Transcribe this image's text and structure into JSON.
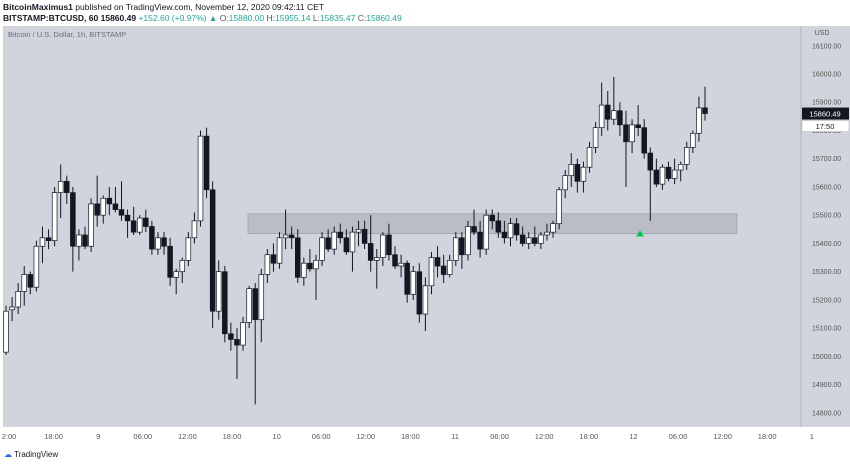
{
  "header": {
    "author": "BitcoinMaximus1",
    "published_text": "published on TradingView.com, November 12, 2020 09:42:11 CET",
    "symbol": "BITSTAMP:BTCUSD, 60",
    "last_price": "15860.49",
    "change_text": "+152.60 (+0.97%)",
    "o_label": "O:",
    "o_value": "15880.00",
    "h_label": "H:",
    "h_value": "15955.14",
    "l_label": "L:",
    "l_value": "15835.47",
    "c_label": "C:",
    "c_value": "15860.49"
  },
  "pane_title": "Bitcoin / U.S. Dollar, 1h, BITSTAMP",
  "price_label": "15860.49",
  "countdown_label": "17:50",
  "footer": {
    "logo_text": "TradingView"
  },
  "colors": {
    "up_body": "#ffffff",
    "down_body": "#131722",
    "wick": "#131722",
    "zone": "#b2b5be",
    "arrow": "#00c853",
    "background": "#d1d4dc"
  },
  "chart_data": {
    "type": "candlestick",
    "y_axis": {
      "currency": "USD",
      "ticks": [
        "16100.00",
        "16000.00",
        "15900.00",
        "15800.00",
        "15700.00",
        "15600.00",
        "15500.00",
        "15400.00",
        "15300.00",
        "15200.00",
        "15100.00",
        "15000.00",
        "14900.00",
        "14800.00"
      ],
      "ylim": [
        14750,
        16170
      ]
    },
    "x_axis": {
      "ticks": [
        "2:00",
        "18:00",
        "9",
        "06:00",
        "12:00",
        "18:00",
        "10",
        "06:00",
        "12:00",
        "18:00",
        "11",
        "06:00",
        "12:00",
        "18:00",
        "12",
        "06:00",
        "12:00",
        "18:00",
        "1"
      ]
    },
    "support_zone": {
      "low": 15435,
      "high": 15505
    },
    "bullish_marker": {
      "price": 15435
    },
    "candles": [
      {
        "o": 15015,
        "h": 15180,
        "l": 15005,
        "c": 15160
      },
      {
        "o": 15165,
        "h": 15210,
        "l": 15125,
        "c": 15175
      },
      {
        "o": 15175,
        "h": 15260,
        "l": 15150,
        "c": 15230
      },
      {
        "o": 15230,
        "h": 15320,
        "l": 15180,
        "c": 15290
      },
      {
        "o": 15290,
        "h": 15300,
        "l": 15220,
        "c": 15245
      },
      {
        "o": 15245,
        "h": 15410,
        "l": 15230,
        "c": 15390
      },
      {
        "o": 15390,
        "h": 15460,
        "l": 15330,
        "c": 15420
      },
      {
        "o": 15420,
        "h": 15450,
        "l": 15380,
        "c": 15410
      },
      {
        "o": 15410,
        "h": 15600,
        "l": 15390,
        "c": 15580
      },
      {
        "o": 15580,
        "h": 15680,
        "l": 15490,
        "c": 15620
      },
      {
        "o": 15620,
        "h": 15640,
        "l": 15540,
        "c": 15580
      },
      {
        "o": 15580,
        "h": 15600,
        "l": 15300,
        "c": 15390
      },
      {
        "o": 15390,
        "h": 15450,
        "l": 15340,
        "c": 15430
      },
      {
        "o": 15430,
        "h": 15460,
        "l": 15380,
        "c": 15390
      },
      {
        "o": 15390,
        "h": 15560,
        "l": 15370,
        "c": 15540
      },
      {
        "o": 15540,
        "h": 15640,
        "l": 15460,
        "c": 15500
      },
      {
        "o": 15500,
        "h": 15570,
        "l": 15470,
        "c": 15560
      },
      {
        "o": 15560,
        "h": 15600,
        "l": 15500,
        "c": 15540
      },
      {
        "o": 15540,
        "h": 15600,
        "l": 15510,
        "c": 15520
      },
      {
        "o": 15520,
        "h": 15620,
        "l": 15480,
        "c": 15500
      },
      {
        "o": 15500,
        "h": 15520,
        "l": 15420,
        "c": 15480
      },
      {
        "o": 15480,
        "h": 15530,
        "l": 15430,
        "c": 15440
      },
      {
        "o": 15440,
        "h": 15500,
        "l": 15430,
        "c": 15490
      },
      {
        "o": 15490,
        "h": 15520,
        "l": 15440,
        "c": 15460
      },
      {
        "o": 15460,
        "h": 15480,
        "l": 15360,
        "c": 15380
      },
      {
        "o": 15380,
        "h": 15440,
        "l": 15360,
        "c": 15420
      },
      {
        "o": 15420,
        "h": 15440,
        "l": 15360,
        "c": 15390
      },
      {
        "o": 15390,
        "h": 15420,
        "l": 15250,
        "c": 15280
      },
      {
        "o": 15280,
        "h": 15310,
        "l": 15220,
        "c": 15300
      },
      {
        "o": 15300,
        "h": 15350,
        "l": 15260,
        "c": 15340
      },
      {
        "o": 15340,
        "h": 15440,
        "l": 15320,
        "c": 15420
      },
      {
        "o": 15420,
        "h": 15510,
        "l": 15400,
        "c": 15480
      },
      {
        "o": 15480,
        "h": 15800,
        "l": 15460,
        "c": 15780
      },
      {
        "o": 15780,
        "h": 15810,
        "l": 15560,
        "c": 15590
      },
      {
        "o": 15590,
        "h": 15620,
        "l": 15100,
        "c": 15160
      },
      {
        "o": 15160,
        "h": 15340,
        "l": 15130,
        "c": 15300
      },
      {
        "o": 15300,
        "h": 15320,
        "l": 15050,
        "c": 15080
      },
      {
        "o": 15080,
        "h": 15120,
        "l": 15020,
        "c": 15060
      },
      {
        "o": 15060,
        "h": 15100,
        "l": 14920,
        "c": 15040
      },
      {
        "o": 15040,
        "h": 15140,
        "l": 15020,
        "c": 15120
      },
      {
        "o": 15120,
        "h": 15250,
        "l": 15100,
        "c": 15240
      },
      {
        "o": 15240,
        "h": 15260,
        "l": 14830,
        "c": 15130
      },
      {
        "o": 15130,
        "h": 15310,
        "l": 15050,
        "c": 15290
      },
      {
        "o": 15290,
        "h": 15380,
        "l": 15260,
        "c": 15360
      },
      {
        "o": 15360,
        "h": 15400,
        "l": 15300,
        "c": 15330
      },
      {
        "o": 15330,
        "h": 15440,
        "l": 15310,
        "c": 15420
      },
      {
        "o": 15420,
        "h": 15520,
        "l": 15380,
        "c": 15430
      },
      {
        "o": 15430,
        "h": 15460,
        "l": 15380,
        "c": 15420
      },
      {
        "o": 15420,
        "h": 15450,
        "l": 15260,
        "c": 15280
      },
      {
        "o": 15280,
        "h": 15350,
        "l": 15250,
        "c": 15330
      },
      {
        "o": 15330,
        "h": 15380,
        "l": 15300,
        "c": 15310
      },
      {
        "o": 15310,
        "h": 15360,
        "l": 15200,
        "c": 15340
      },
      {
        "o": 15340,
        "h": 15440,
        "l": 15320,
        "c": 15420
      },
      {
        "o": 15420,
        "h": 15450,
        "l": 15370,
        "c": 15380
      },
      {
        "o": 15380,
        "h": 15460,
        "l": 15360,
        "c": 15440
      },
      {
        "o": 15440,
        "h": 15470,
        "l": 15400,
        "c": 15420
      },
      {
        "o": 15420,
        "h": 15450,
        "l": 15360,
        "c": 15370
      },
      {
        "o": 15370,
        "h": 15460,
        "l": 15300,
        "c": 15440
      },
      {
        "o": 15440,
        "h": 15480,
        "l": 15390,
        "c": 15450
      },
      {
        "o": 15450,
        "h": 15480,
        "l": 15380,
        "c": 15400
      },
      {
        "o": 15400,
        "h": 15500,
        "l": 15300,
        "c": 15340
      },
      {
        "o": 15340,
        "h": 15380,
        "l": 15240,
        "c": 15350
      },
      {
        "o": 15350,
        "h": 15440,
        "l": 15320,
        "c": 15430
      },
      {
        "o": 15430,
        "h": 15470,
        "l": 15340,
        "c": 15360
      },
      {
        "o": 15360,
        "h": 15390,
        "l": 15310,
        "c": 15320
      },
      {
        "o": 15320,
        "h": 15360,
        "l": 15280,
        "c": 15330
      },
      {
        "o": 15330,
        "h": 15340,
        "l": 15190,
        "c": 15220
      },
      {
        "o": 15220,
        "h": 15320,
        "l": 15200,
        "c": 15300
      },
      {
        "o": 15300,
        "h": 15330,
        "l": 15120,
        "c": 15150
      },
      {
        "o": 15150,
        "h": 15280,
        "l": 15090,
        "c": 15250
      },
      {
        "o": 15250,
        "h": 15370,
        "l": 15220,
        "c": 15350
      },
      {
        "o": 15350,
        "h": 15390,
        "l": 15280,
        "c": 15320
      },
      {
        "o": 15320,
        "h": 15360,
        "l": 15260,
        "c": 15290
      },
      {
        "o": 15290,
        "h": 15360,
        "l": 15280,
        "c": 15340
      },
      {
        "o": 15340,
        "h": 15440,
        "l": 15320,
        "c": 15420
      },
      {
        "o": 15420,
        "h": 15440,
        "l": 15310,
        "c": 15360
      },
      {
        "o": 15360,
        "h": 15480,
        "l": 15340,
        "c": 15460
      },
      {
        "o": 15460,
        "h": 15520,
        "l": 15430,
        "c": 15440
      },
      {
        "o": 15440,
        "h": 15480,
        "l": 15350,
        "c": 15380
      },
      {
        "o": 15380,
        "h": 15520,
        "l": 15360,
        "c": 15500
      },
      {
        "o": 15500,
        "h": 15520,
        "l": 15450,
        "c": 15480
      },
      {
        "o": 15480,
        "h": 15510,
        "l": 15420,
        "c": 15440
      },
      {
        "o": 15440,
        "h": 15480,
        "l": 15400,
        "c": 15420
      },
      {
        "o": 15420,
        "h": 15490,
        "l": 15390,
        "c": 15470
      },
      {
        "o": 15470,
        "h": 15490,
        "l": 15410,
        "c": 15430
      },
      {
        "o": 15430,
        "h": 15460,
        "l": 15390,
        "c": 15400
      },
      {
        "o": 15400,
        "h": 15440,
        "l": 15380,
        "c": 15420
      },
      {
        "o": 15420,
        "h": 15460,
        "l": 15390,
        "c": 15400
      },
      {
        "o": 15400,
        "h": 15440,
        "l": 15380,
        "c": 15430
      },
      {
        "o": 15430,
        "h": 15470,
        "l": 15410,
        "c": 15440
      },
      {
        "o": 15440,
        "h": 15480,
        "l": 15420,
        "c": 15470
      },
      {
        "o": 15470,
        "h": 15600,
        "l": 15450,
        "c": 15590
      },
      {
        "o": 15590,
        "h": 15660,
        "l": 15560,
        "c": 15640
      },
      {
        "o": 15640,
        "h": 15720,
        "l": 15600,
        "c": 15680
      },
      {
        "o": 15680,
        "h": 15700,
        "l": 15580,
        "c": 15620
      },
      {
        "o": 15620,
        "h": 15690,
        "l": 15580,
        "c": 15670
      },
      {
        "o": 15670,
        "h": 15760,
        "l": 15650,
        "c": 15740
      },
      {
        "o": 15740,
        "h": 15830,
        "l": 15720,
        "c": 15810
      },
      {
        "o": 15810,
        "h": 15970,
        "l": 15780,
        "c": 15890
      },
      {
        "o": 15890,
        "h": 15940,
        "l": 15800,
        "c": 15840
      },
      {
        "o": 15840,
        "h": 15990,
        "l": 15820,
        "c": 15870
      },
      {
        "o": 15870,
        "h": 15900,
        "l": 15780,
        "c": 15820
      },
      {
        "o": 15820,
        "h": 15870,
        "l": 15600,
        "c": 15760
      },
      {
        "o": 15760,
        "h": 15840,
        "l": 15720,
        "c": 15820
      },
      {
        "o": 15820,
        "h": 15890,
        "l": 15780,
        "c": 15810
      },
      {
        "o": 15810,
        "h": 15840,
        "l": 15700,
        "c": 15720
      },
      {
        "o": 15720,
        "h": 15740,
        "l": 15480,
        "c": 15660
      },
      {
        "o": 15660,
        "h": 15700,
        "l": 15600,
        "c": 15610
      },
      {
        "o": 15610,
        "h": 15680,
        "l": 15590,
        "c": 15670
      },
      {
        "o": 15670,
        "h": 15690,
        "l": 15620,
        "c": 15630
      },
      {
        "o": 15630,
        "h": 15700,
        "l": 15610,
        "c": 15660
      },
      {
        "o": 15660,
        "h": 15690,
        "l": 15620,
        "c": 15680
      },
      {
        "o": 15680,
        "h": 15760,
        "l": 15660,
        "c": 15740
      },
      {
        "o": 15740,
        "h": 15800,
        "l": 15720,
        "c": 15790
      },
      {
        "o": 15790,
        "h": 15920,
        "l": 15760,
        "c": 15880
      },
      {
        "o": 15880,
        "h": 15955,
        "l": 15835,
        "c": 15860
      }
    ]
  }
}
